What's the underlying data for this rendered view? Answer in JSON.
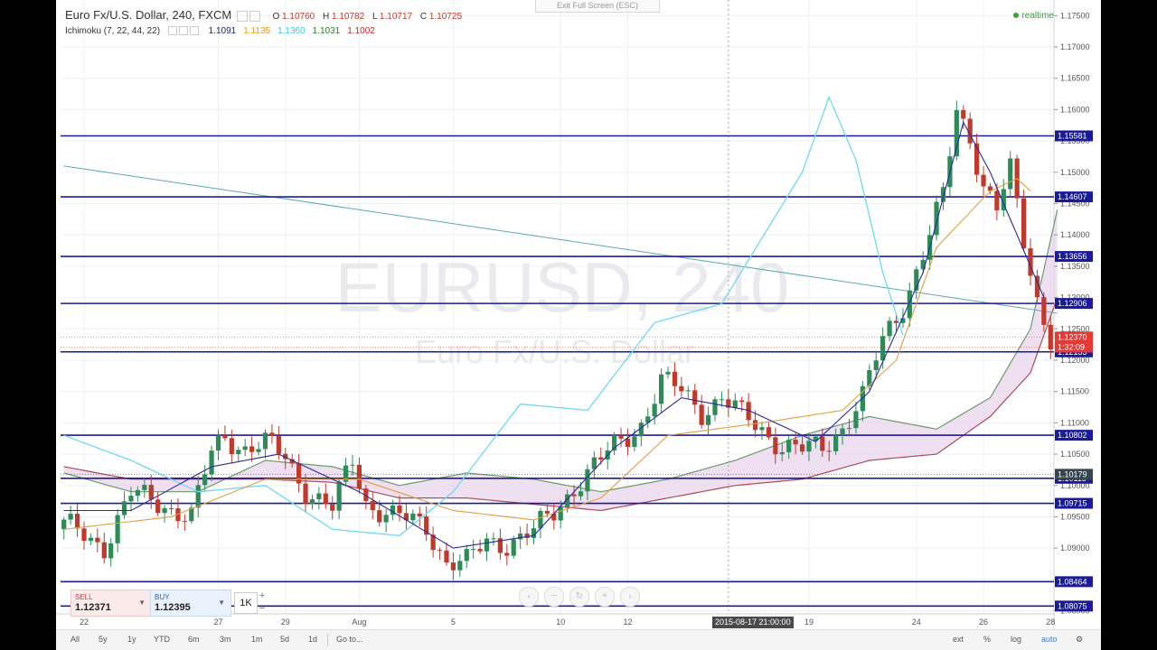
{
  "header": {
    "symbol_title": "Euro Fx/U.S. Dollar, 240, FXCM",
    "ohlc": {
      "o_label": "O",
      "o": "1.10760",
      "h_label": "H",
      "h": "1.10782",
      "l_label": "L",
      "l": "1.10717",
      "c_label": "C",
      "c": "1.10725"
    },
    "indicator_name": "Ichimoku (7, 22, 44, 22)",
    "indicator_values": [
      {
        "value": "1.1091",
        "color": "#1a237e"
      },
      {
        "value": "1.1135",
        "color": "#e69a22"
      },
      {
        "value": "1.1360",
        "color": "#39c9e8"
      },
      {
        "value": "1.1031",
        "color": "#2e7d32"
      },
      {
        "value": "1.1002",
        "color": "#c62828"
      }
    ],
    "realtime": "realtime",
    "exit_fullscreen": "Exit Full Screen (ESC)"
  },
  "watermark": {
    "symbol": "EURUSD, 240",
    "name": "Euro Fx/U.S. Dollar"
  },
  "trading": {
    "sell_label": "SELL",
    "sell_price": "1.12371",
    "buy_label": "BUY",
    "buy_price": "1.12395",
    "quantity": "1K"
  },
  "crosshair_date": "2015-08-17 21:00:00",
  "toolbar": {
    "ranges": [
      "All",
      "5y",
      "1y",
      "YTD",
      "6m",
      "3m",
      "1m",
      "5d",
      "1d",
      "Go to..."
    ],
    "right": [
      "ext",
      "%",
      "log",
      "auto"
    ]
  },
  "chart_data": {
    "type": "candlestick",
    "ylim": [
      1.0795,
      1.1775
    ],
    "y_ticks": [
      "1.17500",
      "1.17000",
      "1.16500",
      "1.16000",
      "1.15500",
      "1.15000",
      "1.14500",
      "1.14000",
      "1.13500",
      "1.13000",
      "1.12500",
      "1.12000",
      "1.11500",
      "1.11000",
      "1.10500",
      "1.10000",
      "1.09500",
      "1.09000",
      "1.08500",
      "1.08000"
    ],
    "x_labels": [
      {
        "label": "22",
        "bar": 3
      },
      {
        "label": "27",
        "bar": 23
      },
      {
        "label": "29",
        "bar": 33
      },
      {
        "label": "Aug",
        "bar": 44
      },
      {
        "label": "5",
        "bar": 58
      },
      {
        "label": "10",
        "bar": 74
      },
      {
        "label": "12",
        "bar": 84
      },
      {
        "label": "19",
        "bar": 111
      },
      {
        "label": "24",
        "bar": 127
      },
      {
        "label": "26",
        "bar": 137
      },
      {
        "label": "28",
        "bar": 147
      }
    ],
    "n_bars": 148,
    "horizontal_levels": [
      {
        "price": 1.15581,
        "label": "1.15581"
      },
      {
        "price": 1.14607,
        "label": "1.14607"
      },
      {
        "price": 1.13656,
        "label": "1.13656"
      },
      {
        "price": 1.12906,
        "label": "1.12906"
      },
      {
        "price": 1.12133,
        "label": "1.12133"
      },
      {
        "price": 1.10802,
        "label": "1.10802"
      },
      {
        "price": 1.10115,
        "label": "1.10115"
      },
      {
        "price": 1.09715,
        "label": "1.09715"
      },
      {
        "price": 1.08464,
        "label": "1.08464"
      },
      {
        "price": 1.08075,
        "label": "1.08075"
      }
    ],
    "price_markers": [
      {
        "price": 1.1237,
        "label": "1.12370",
        "color": "#e53935"
      },
      {
        "price": 1.12209,
        "label": "1:32:09",
        "color": "#e53935"
      },
      {
        "price": 1.10179,
        "label": "1.10179",
        "color": "#37474f"
      }
    ],
    "trendline": {
      "from": {
        "bar": 0,
        "price": 1.151
      },
      "to": {
        "bar": 148,
        "price": 1.1275
      }
    },
    "crosshair_bar": 99,
    "close_keypoints": [
      [
        0,
        1.0935
      ],
      [
        6,
        1.0905
      ],
      [
        10,
        1.0985
      ],
      [
        15,
        1.097
      ],
      [
        19,
        1.095
      ],
      [
        22,
        1.105
      ],
      [
        24,
        1.108
      ],
      [
        27,
        1.106
      ],
      [
        30,
        1.1065
      ],
      [
        33,
        1.1045
      ],
      [
        36,
        1.0995
      ],
      [
        40,
        1.096
      ],
      [
        43,
        1.104
      ],
      [
        45,
        1.0975
      ],
      [
        49,
        1.095
      ],
      [
        54,
        1.0935
      ],
      [
        57,
        1.088
      ],
      [
        60,
        1.0875
      ],
      [
        63,
        1.091
      ],
      [
        66,
        1.091
      ],
      [
        70,
        1.0925
      ],
      [
        73,
        1.0955
      ],
      [
        76,
        1.1
      ],
      [
        79,
        1.103
      ],
      [
        82,
        1.106
      ],
      [
        86,
        1.11
      ],
      [
        89,
        1.1165
      ],
      [
        92,
        1.115
      ],
      [
        95,
        1.112
      ],
      [
        98,
        1.114
      ],
      [
        101,
        1.111
      ],
      [
        104,
        1.109
      ],
      [
        107,
        1.1065
      ],
      [
        110,
        1.1055
      ],
      [
        113,
        1.106
      ],
      [
        116,
        1.1095
      ],
      [
        119,
        1.114
      ],
      [
        122,
        1.123
      ],
      [
        125,
        1.129
      ],
      [
        128,
        1.137
      ],
      [
        131,
        1.146
      ],
      [
        133,
        1.16
      ],
      [
        135,
        1.156
      ],
      [
        137,
        1.148
      ],
      [
        139,
        1.144
      ],
      [
        141,
        1.15
      ],
      [
        143,
        1.139
      ],
      [
        145,
        1.13
      ],
      [
        147,
        1.1237
      ]
    ],
    "ichimoku": {
      "tenkan": [
        [
          0,
          1.096
        ],
        [
          10,
          1.096
        ],
        [
          22,
          1.103
        ],
        [
          32,
          1.105
        ],
        [
          44,
          1.099
        ],
        [
          58,
          1.09
        ],
        [
          70,
          1.092
        ],
        [
          82,
          1.106
        ],
        [
          92,
          1.114
        ],
        [
          102,
          1.112
        ],
        [
          112,
          1.107
        ],
        [
          120,
          1.115
        ],
        [
          128,
          1.134
        ],
        [
          134,
          1.158
        ],
        [
          138,
          1.15
        ],
        [
          144,
          1.135
        ],
        [
          146,
          1.13
        ]
      ],
      "kijun": [
        [
          0,
          1.093
        ],
        [
          16,
          1.095
        ],
        [
          30,
          1.101
        ],
        [
          44,
          1.101
        ],
        [
          58,
          1.096
        ],
        [
          70,
          1.0945
        ],
        [
          80,
          1.098
        ],
        [
          90,
          1.108
        ],
        [
          104,
          1.11
        ],
        [
          116,
          1.112
        ],
        [
          124,
          1.12
        ],
        [
          130,
          1.138
        ],
        [
          138,
          1.147
        ],
        [
          142,
          1.149
        ],
        [
          144,
          1.147
        ]
      ],
      "chikou": [
        [
          0,
          1.108
        ],
        [
          10,
          1.104
        ],
        [
          20,
          1.099
        ],
        [
          30,
          1.1
        ],
        [
          40,
          1.093
        ],
        [
          50,
          1.092
        ],
        [
          58,
          1.099
        ],
        [
          68,
          1.113
        ],
        [
          78,
          1.112
        ],
        [
          88,
          1.126
        ],
        [
          98,
          1.129
        ],
        [
          110,
          1.15
        ],
        [
          114,
          1.162
        ],
        [
          118,
          1.152
        ],
        [
          122,
          1.134
        ],
        [
          125,
          1.124
        ]
      ],
      "span_a": [
        [
          0,
          1.102
        ],
        [
          10,
          1.099
        ],
        [
          20,
          1.099
        ],
        [
          30,
          1.104
        ],
        [
          40,
          1.103
        ],
        [
          50,
          1.1
        ],
        [
          60,
          1.102
        ],
        [
          70,
          1.101
        ],
        [
          80,
          1.099
        ],
        [
          90,
          1.101
        ],
        [
          100,
          1.104
        ],
        [
          110,
          1.108
        ],
        [
          120,
          1.111
        ],
        [
          130,
          1.109
        ],
        [
          138,
          1.114
        ],
        [
          144,
          1.125
        ],
        [
          148,
          1.144
        ]
      ],
      "span_b": [
        [
          0,
          1.103
        ],
        [
          10,
          1.101
        ],
        [
          20,
          1.101
        ],
        [
          30,
          1.101
        ],
        [
          40,
          1.1005
        ],
        [
          50,
          1.098
        ],
        [
          60,
          1.098
        ],
        [
          70,
          1.097
        ],
        [
          80,
          1.096
        ],
        [
          90,
          1.098
        ],
        [
          100,
          1.1
        ],
        [
          110,
          1.101
        ],
        [
          120,
          1.104
        ],
        [
          130,
          1.105
        ],
        [
          138,
          1.111
        ],
        [
          144,
          1.118
        ],
        [
          148,
          1.13
        ]
      ]
    }
  }
}
